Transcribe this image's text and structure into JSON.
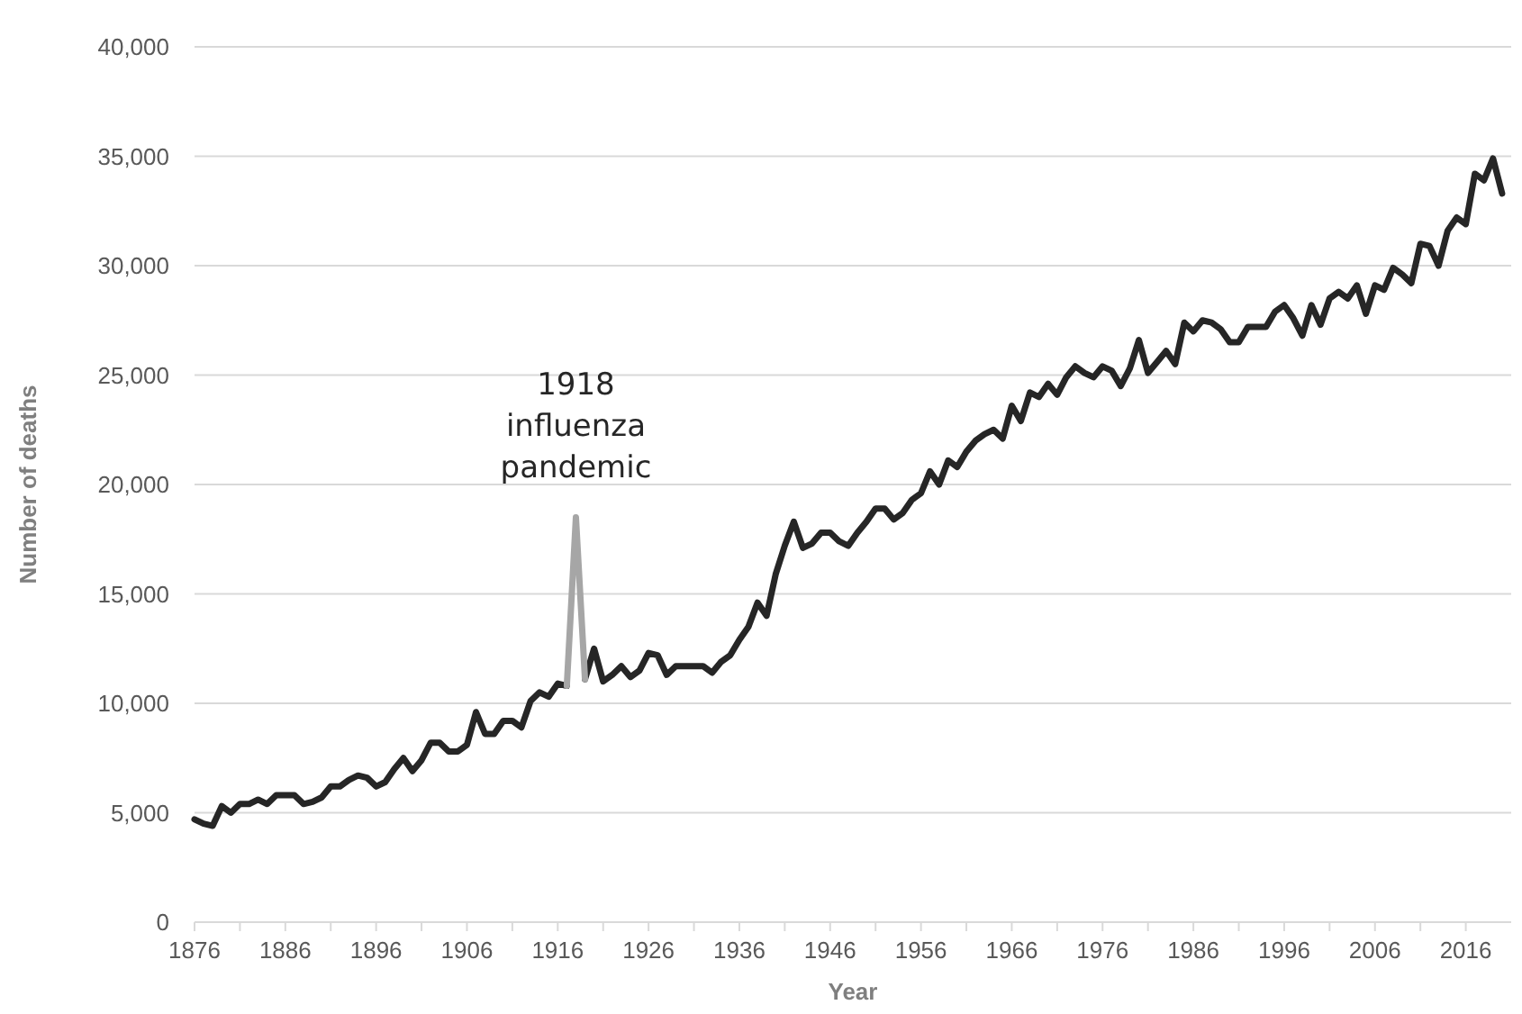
{
  "chart_data": {
    "type": "line",
    "xlabel": "Year",
    "ylabel": "Number of deaths",
    "xlim": [
      1876,
      2021
    ],
    "xticks": [
      1876,
      {
        "value": 1881,
        "label": null
      },
      1886,
      {
        "value": 1891,
        "label": null
      },
      1896,
      {
        "value": 1901,
        "label": null
      },
      1906,
      {
        "value": 1911,
        "label": null
      },
      1916,
      {
        "value": 1921,
        "label": null
      },
      1926,
      {
        "value": 1931,
        "label": null
      },
      1936,
      {
        "value": 1941,
        "label": null
      },
      1946,
      {
        "value": 1951,
        "label": null
      },
      1956,
      {
        "value": 1961,
        "label": null
      },
      1966,
      {
        "value": 1971,
        "label": null
      },
      1976,
      {
        "value": 1981,
        "label": null
      },
      1986,
      {
        "value": 1991,
        "label": null
      },
      1996,
      {
        "value": 2001,
        "label": null
      },
      2006,
      {
        "value": 2011,
        "label": null
      },
      2016
    ],
    "ylim": [
      0,
      40000
    ],
    "yticks": [
      0,
      {
        "value": 5000,
        "label": "5,000"
      },
      {
        "value": 10000,
        "label": "10,000"
      },
      {
        "value": 15000,
        "label": "15,000"
      },
      {
        "value": 20000,
        "label": "20,000"
      },
      {
        "value": 25000,
        "label": "25,000"
      },
      {
        "value": 30000,
        "label": "30,000"
      },
      {
        "value": 35000,
        "label": "35,000"
      },
      {
        "value": 40000,
        "label": "40,000"
      }
    ],
    "grid": "y",
    "marker": "none",
    "line_style": "solid",
    "x": [
      1876,
      1877,
      1878,
      1879,
      1880,
      1881,
      1882,
      1883,
      1884,
      1885,
      1886,
      1887,
      1888,
      1889,
      1890,
      1891,
      1892,
      1893,
      1894,
      1895,
      1896,
      1897,
      1898,
      1899,
      1900,
      1901,
      1902,
      1903,
      1904,
      1905,
      1906,
      1907,
      1908,
      1909,
      1910,
      1911,
      1912,
      1913,
      1914,
      1915,
      1916,
      1917,
      1918,
      1919,
      1920,
      1921,
      1922,
      1923,
      1924,
      1925,
      1926,
      1927,
      1928,
      1929,
      1930,
      1931,
      1932,
      1933,
      1934,
      1935,
      1936,
      1937,
      1938,
      1939,
      1940,
      1941,
      1942,
      1943,
      1944,
      1945,
      1946,
      1947,
      1948,
      1949,
      1950,
      1951,
      1952,
      1953,
      1954,
      1955,
      1956,
      1957,
      1958,
      1959,
      1960,
      1961,
      1962,
      1963,
      1964,
      1965,
      1966,
      1967,
      1968,
      1969,
      1970,
      1971,
      1972,
      1973,
      1974,
      1975,
      1976,
      1977,
      1978,
      1979,
      1980,
      1981,
      1982,
      1983,
      1984,
      1985,
      1986,
      1987,
      1988,
      1989,
      1990,
      1991,
      1992,
      1993,
      1994,
      1995,
      1996,
      1997,
      1998,
      1999,
      2000,
      2001,
      2002,
      2003,
      2004,
      2005,
      2006,
      2007,
      2008,
      2009,
      2010,
      2011,
      2012,
      2013,
      2014,
      2015,
      2016,
      2017,
      2018,
      2019,
      2020
    ],
    "series": [
      {
        "color": "#262626",
        "values": [
          4700,
          4500,
          4400,
          5300,
          5000,
          5400,
          5400,
          5600,
          5400,
          5800,
          5800,
          5800,
          5400,
          5500,
          5700,
          6200,
          6200,
          6500,
          6700,
          6600,
          6200,
          6400,
          7000,
          7500,
          6900,
          7400,
          8200,
          8200,
          7800,
          7800,
          8100,
          9600,
          8600,
          8600,
          9200,
          9200,
          8900,
          10100,
          10500,
          10300,
          10900,
          10800,
          null,
          11100,
          12500,
          11000,
          11300,
          11700,
          11200,
          11500,
          12300,
          12200,
          11300,
          11700,
          11700,
          11700,
          11700,
          11400,
          11900,
          12200,
          12900,
          13500,
          14600,
          14000,
          15900,
          17200,
          18300,
          17100,
          17300,
          17800,
          17800,
          17400,
          17200,
          17800,
          18300,
          18900,
          18900,
          18400,
          18700,
          19300,
          19600,
          20600,
          20000,
          21100,
          20800,
          21500,
          22000,
          22300,
          22500,
          22100,
          23600,
          22900,
          24200,
          24000,
          24600,
          24100,
          24900,
          25400,
          25100,
          24900,
          25400,
          25200,
          24500,
          25300,
          26600,
          25100,
          25600,
          26100,
          25500,
          27400,
          27000,
          27500,
          27400,
          27100,
          26500,
          26500,
          27200,
          27200,
          27200,
          27900,
          28200,
          27600,
          26800,
          28200,
          27300,
          28500,
          28800,
          28500,
          29100,
          27800,
          29100,
          28900,
          29900,
          29600,
          29200,
          31000,
          30900,
          30000,
          31600,
          32200,
          31900,
          34200,
          33900,
          34900,
          33300
        ]
      },
      {
        "color": "#a6a6a6",
        "x": [
          1917,
          1918,
          1919
        ],
        "values": [
          10800,
          18500,
          11100
        ]
      }
    ],
    "annotations": [
      {
        "text": "1918\ninfluenza\npandemic",
        "x": 1918,
        "y": 18500
      }
    ]
  }
}
